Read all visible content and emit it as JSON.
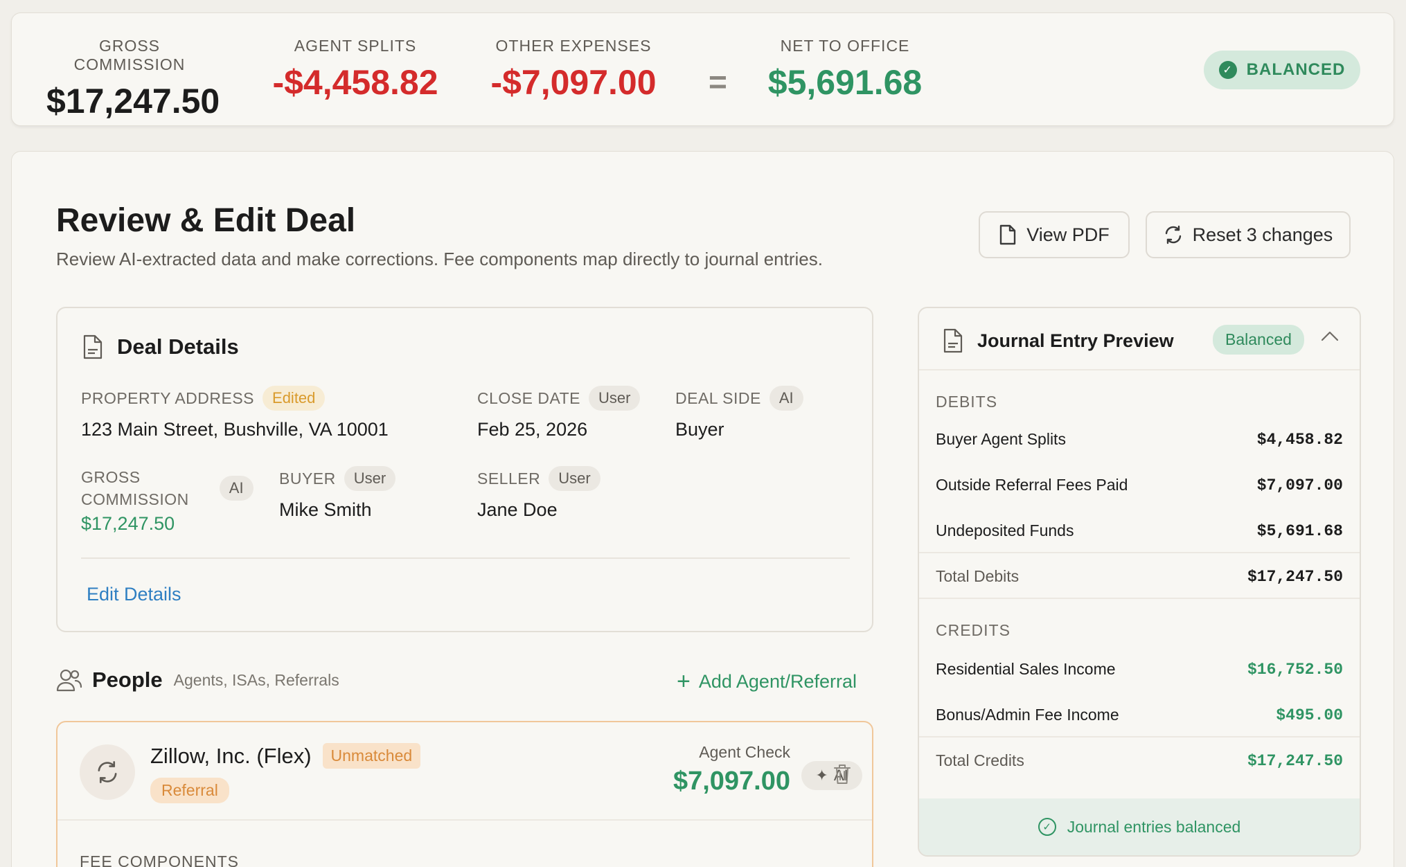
{
  "summary": {
    "gross_label": "GROSS COMMISSION",
    "gross_value": "$17,247.50",
    "splits_label": "AGENT SPLITS",
    "splits_value": "-$4,458.82",
    "expenses_label": "OTHER EXPENSES",
    "expenses_value": "-$7,097.00",
    "equals": "=",
    "net_label": "NET TO OFFICE",
    "net_value": "$5,691.68",
    "status": "BALANCED",
    "status_check": "✓"
  },
  "page": {
    "title": "Review & Edit Deal",
    "subtitle": "Review AI-extracted data and make corrections. Fee components map directly to journal entries.",
    "view_pdf": "View PDF",
    "reset": "Reset 3 changes"
  },
  "deal": {
    "title": "Deal Details",
    "property_label": "PROPERTY ADDRESS",
    "property_tag": "Edited",
    "property_value": "123 Main Street, Bushville, VA 10001",
    "close_label": "CLOSE DATE",
    "close_tag": "User",
    "close_value": "Feb 25, 2026",
    "side_label": "DEAL SIDE",
    "side_tag": "AI",
    "side_value": "Buyer",
    "gross_label_1": "GROSS",
    "gross_label_2": "COMMISSION",
    "gross_tag": "AI",
    "gross_value": "$17,247.50",
    "buyer_label": "BUYER",
    "buyer_tag": "User",
    "buyer_value": "Mike Smith",
    "seller_label": "SELLER",
    "seller_tag": "User",
    "seller_value": "Jane Doe",
    "edit_link": "Edit Details"
  },
  "people": {
    "title": "People",
    "subtitle": "Agents, ISAs, Referrals",
    "add": "Add Agent/Referral",
    "add_plus": "+",
    "card": {
      "name": "Zillow, Inc. (Flex)",
      "status_tag": "Unmatched",
      "type_tag": "Referral",
      "check_label": "Agent Check",
      "check_value": "$7,097.00",
      "ai_chip": "AI",
      "ai_sparkle": "✦",
      "fee_label": "FEE COMPONENTS"
    }
  },
  "journal": {
    "title": "Journal Entry Preview",
    "badge": "Balanced",
    "debits_label": "DEBITS",
    "debits": [
      {
        "label": "Buyer Agent Splits",
        "amount": "$4,458.82"
      },
      {
        "label": "Outside Referral Fees Paid",
        "amount": "$7,097.00"
      },
      {
        "label": "Undeposited Funds",
        "amount": "$5,691.68"
      }
    ],
    "total_debits_label": "Total Debits",
    "total_debits": "$17,247.50",
    "credits_label": "CREDITS",
    "credits": [
      {
        "label": "Residential Sales Income",
        "amount": "$16,752.50"
      },
      {
        "label": "Bonus/Admin Fee Income",
        "amount": "$495.00"
      }
    ],
    "total_credits_label": "Total Credits",
    "total_credits": "$17,247.50",
    "footer": "Journal entries balanced",
    "footer_check": "✓"
  },
  "colors": {
    "positive": "#2f9463",
    "negative": "#d42b2b",
    "link": "#2f7fc2",
    "warning": "#d98a3a"
  }
}
